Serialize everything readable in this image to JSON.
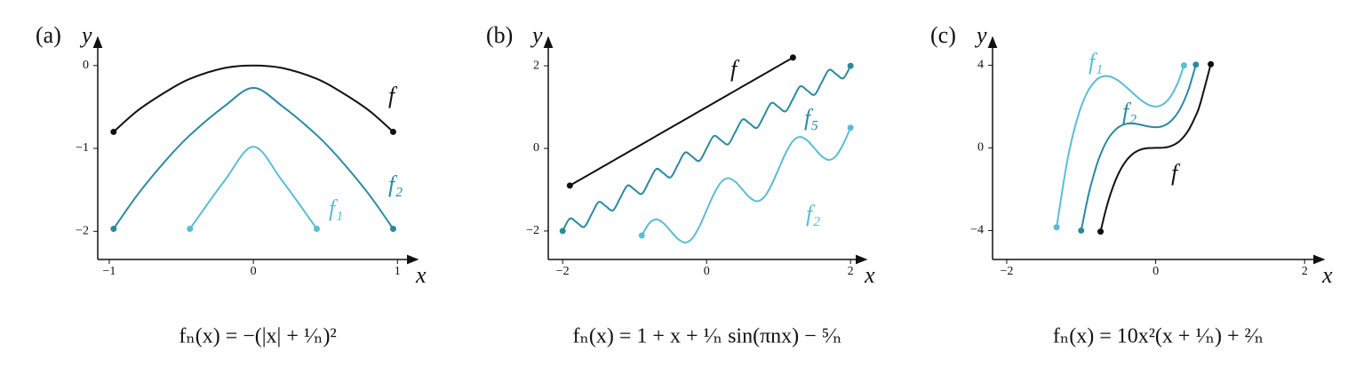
{
  "chart_data": [
    {
      "type": "line",
      "panel_label": "(a)",
      "caption": "fₙ(x) = −(|x| + ¹⁄ₙ)²",
      "xlabel": "x",
      "ylabel": "y",
      "x": [
        -0.97,
        -0.8,
        -0.6,
        -0.44,
        -0.2,
        0,
        0.2,
        0.44,
        0.6,
        0.8,
        0.97
      ],
      "series": [
        {
          "name": "f",
          "color": "#111111",
          "values": [
            -0.8,
            -0.54,
            -0.31,
            -0.16,
            -0.03,
            0,
            -0.03,
            -0.16,
            -0.31,
            -0.54,
            -0.8
          ]
        },
        {
          "name": "f₂",
          "color": "#2a8aa0",
          "values": [
            -1.97,
            -1.55,
            -1.13,
            -0.84,
            -0.49,
            -0.27,
            -0.49,
            -0.84,
            -1.13,
            -1.55,
            -1.97
          ]
        },
        {
          "name": "f₁",
          "color": "#5bbcd6",
          "values": [
            null,
            null,
            null,
            -1.97,
            -1.39,
            -0.98,
            -1.39,
            -1.97,
            null,
            null,
            null
          ]
        }
      ],
      "xlim": [
        -1.08,
        1.14
      ],
      "ylim": [
        -2.34,
        0.34
      ],
      "xticks": [
        {
          "value": -1,
          "label": "−1"
        },
        0,
        1
      ],
      "yticks": [
        0,
        {
          "value": -1,
          "label": "−1"
        },
        {
          "value": -2,
          "label": "−2"
        }
      ]
    },
    {
      "type": "line",
      "panel_label": "(b)",
      "caption": "fₙ(x) = 1 + x + ¹⁄ₙ sin(πnx) − ⁵⁄ₙ",
      "xlabel": "x",
      "ylabel": "y",
      "x": [
        -2.0,
        -1.9,
        -1.8,
        -1.7,
        -1.6,
        -1.5,
        -1.4,
        -1.3,
        -1.2,
        -1.1,
        -1.0,
        -0.9,
        -0.8,
        -0.7,
        -0.6,
        -0.5,
        -0.4,
        -0.3,
        -0.2,
        -0.1,
        0,
        0.1,
        0.2,
        0.3,
        0.4,
        0.5,
        0.6,
        0.7,
        0.8,
        0.9,
        1.0,
        1.1,
        1.2,
        1.3,
        1.4,
        1.5,
        1.6,
        1.7,
        1.8,
        1.9,
        2.0
      ],
      "series": [
        {
          "name": "f",
          "color": "#111111",
          "values": [
            null,
            -0.9,
            -0.8,
            -0.7,
            -0.6,
            -0.5,
            -0.4,
            -0.3,
            -0.2,
            -0.1,
            0,
            0.1,
            0.2,
            0.3,
            0.4,
            0.5,
            0.6,
            0.7,
            0.8,
            0.9,
            1.0,
            1.1,
            1.2,
            1.3,
            1.4,
            1.5,
            1.6,
            1.7,
            1.8,
            1.9,
            2.0,
            2.1,
            2.2,
            null,
            null,
            null,
            null,
            null,
            null,
            null,
            null
          ]
        },
        {
          "name": "f₅",
          "color": "#2a8aa0",
          "values": [
            -2.0,
            -1.7,
            -1.8,
            -1.9,
            -1.6,
            -1.3,
            -1.4,
            -1.5,
            -1.2,
            -0.9,
            -1.0,
            -1.1,
            -0.8,
            -0.5,
            -0.6,
            -0.7,
            -0.4,
            -0.1,
            -0.2,
            -0.3,
            0,
            0.3,
            0.2,
            0.1,
            0.4,
            0.7,
            0.6,
            0.5,
            0.8,
            1.1,
            1.0,
            0.9,
            1.2,
            1.5,
            1.4,
            1.3,
            1.6,
            1.9,
            1.8,
            1.7,
            2.0
          ]
        },
        {
          "name": "f₂",
          "color": "#5bbcd6",
          "values": [
            null,
            null,
            null,
            null,
            null,
            null,
            null,
            null,
            null,
            null,
            null,
            -2.11,
            -1.82,
            -1.72,
            -1.81,
            -2.0,
            -2.19,
            -2.28,
            -2.18,
            -1.89,
            -1.5,
            -1.11,
            -0.82,
            -0.72,
            -0.81,
            -1.0,
            -1.19,
            -1.28,
            -1.18,
            -0.89,
            -0.5,
            -0.11,
            0.18,
            0.28,
            0.19,
            0,
            -0.19,
            -0.28,
            -0.18,
            0.11,
            0.5
          ]
        }
      ],
      "xlim": [
        -2.2,
        2.22
      ],
      "ylim": [
        -2.69,
        2.69
      ],
      "xticks": [
        {
          "value": -2,
          "label": "−2"
        },
        0,
        2
      ],
      "yticks": [
        {
          "value": -2,
          "label": "−2"
        },
        0,
        2
      ]
    },
    {
      "type": "line",
      "panel_label": "(c)",
      "caption": "fₙ(x) = 10x²(x + ¹⁄ₙ) + ²⁄ₙ",
      "xlabel": "x",
      "ylabel": "y",
      "x": [
        -1.33,
        -1.2,
        -1.1,
        -1.0,
        -0.9,
        -0.8,
        -0.74,
        -0.67,
        -0.6,
        -0.5,
        -0.4,
        -0.3,
        -0.2,
        -0.1,
        0,
        0.1,
        0.2,
        0.3,
        0.38,
        0.45,
        0.54,
        0.6,
        0.74
      ],
      "series": [
        {
          "name": "f₁",
          "color": "#5bbcd6",
          "values": [
            -3.84,
            -0.88,
            0.79,
            2,
            2.81,
            3.28,
            3.42,
            3.48,
            3.44,
            3.25,
            2.96,
            2.63,
            2.32,
            2.09,
            2,
            2.11,
            2.48,
            3.17,
            3.99,
            null,
            null,
            null,
            null
          ]
        },
        {
          "name": "f₂",
          "color": "#2a8aa0",
          "values": [
            null,
            null,
            null,
            -4,
            -2.24,
            -0.92,
            -0.31,
            0.24,
            0.64,
            1,
            1.16,
            1.18,
            1.12,
            1.04,
            1,
            1.06,
            1.28,
            1.72,
            2.27,
            2.92,
            4.03,
            null,
            null
          ]
        },
        {
          "name": "f",
          "color": "#111111",
          "values": [
            null,
            null,
            null,
            null,
            null,
            null,
            -4.05,
            -3.01,
            -2.16,
            -1.25,
            -0.64,
            -0.27,
            -0.08,
            -0.01,
            0,
            0.01,
            0.08,
            0.27,
            0.55,
            0.91,
            1.57,
            2.16,
            4.05
          ]
        }
      ],
      "xlim": [
        -2.19,
        2.26
      ],
      "ylim": [
        -5.4,
        5.35
      ],
      "xticks": [
        {
          "value": -2,
          "label": "−2"
        },
        0,
        2
      ],
      "yticks": [
        {
          "value": -4,
          "label": "−4"
        },
        0,
        4
      ]
    }
  ]
}
